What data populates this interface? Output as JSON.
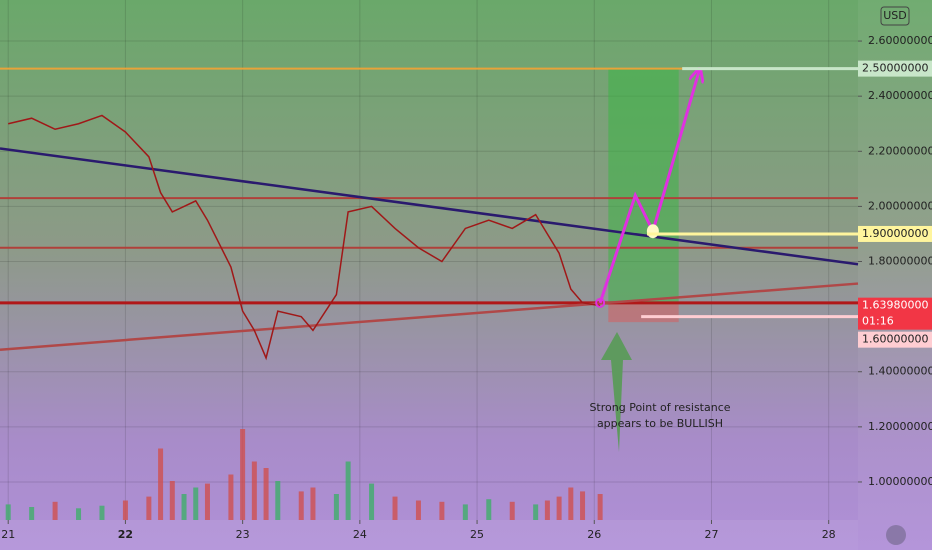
{
  "chart_data": {
    "type": "line",
    "currency": "USD",
    "x": [
      21.0,
      21.2,
      21.4,
      21.6,
      21.8,
      22.0,
      22.2,
      22.3,
      22.4,
      22.5,
      22.6,
      22.7,
      22.9,
      23.0,
      23.1,
      23.2,
      23.3,
      23.5,
      23.6,
      23.8,
      23.9,
      24.1,
      24.3,
      24.5,
      24.7,
      24.9,
      25.1,
      25.3,
      25.5,
      25.6,
      25.7,
      25.8,
      25.9,
      26.05
    ],
    "values": [
      2.3,
      2.32,
      2.28,
      2.3,
      2.33,
      2.27,
      2.18,
      2.05,
      1.98,
      2.0,
      2.02,
      1.95,
      1.78,
      1.62,
      1.55,
      1.45,
      1.62,
      1.6,
      1.55,
      1.68,
      1.98,
      2.0,
      1.92,
      1.85,
      1.8,
      1.92,
      1.95,
      1.92,
      1.97,
      1.9,
      1.83,
      1.7,
      1.65,
      1.64
    ],
    "color": "#a01818",
    "volume": [
      12,
      10,
      14,
      9,
      11,
      15,
      18,
      55,
      30,
      20,
      25,
      28,
      35,
      70,
      45,
      40,
      30,
      22,
      25,
      20,
      45,
      28,
      18,
      15,
      14,
      12,
      16,
      14,
      12,
      15,
      18,
      25,
      22,
      20
    ],
    "y2lim": [
      0,
      100
    ],
    "xlim": [
      20.93,
      28.25
    ],
    "xticks": [
      21,
      22,
      23,
      24,
      25,
      26,
      27,
      28
    ],
    "ylim": [
      0.862,
      2.749
    ],
    "yticks": [
      {
        "value": 1.0,
        "label": "1.00000000"
      },
      {
        "value": 1.2,
        "label": "1.20000000"
      },
      {
        "value": 1.4,
        "label": "1.40000000"
      },
      {
        "value": 1.8,
        "label": "1.80000000"
      },
      {
        "value": 2.0,
        "label": "2.00000000"
      },
      {
        "value": 2.2,
        "label": "2.20000000"
      },
      {
        "value": 2.4,
        "label": "2.40000000"
      },
      {
        "value": 2.6,
        "label": "2.60000000"
      }
    ],
    "grid": true,
    "levels": [
      {
        "value": 2.5,
        "color": "#e8a33a"
      },
      {
        "value": 2.03,
        "color": "#b0403a"
      },
      {
        "value": 1.85,
        "color": "#b0403a"
      },
      {
        "value": 1.65,
        "color": "#b01818"
      }
    ],
    "price_labels": [
      {
        "value": 2.5,
        "label": "2.50000000",
        "color": "#c8e6c9",
        "start": 26.75
      },
      {
        "value": 1.9,
        "label": "1.90000000",
        "color": "#fff59d",
        "start": 26.45
      },
      {
        "value": 1.6398,
        "label": "1.63980000",
        "color": "#f23645",
        "countdown": "01:16"
      },
      {
        "value": 1.6,
        "label": "1.60000000",
        "color": "#ffcdd2",
        "start": 26.4
      }
    ],
    "trendlines": [
      {
        "color": "#2a1a6e",
        "x": [
          20.93,
          28.25
        ],
        "values": [
          2.21,
          1.79
        ]
      },
      {
        "color": "#b04848",
        "x": [
          20.93,
          28.25
        ],
        "values": [
          1.48,
          1.72
        ]
      }
    ],
    "projection": {
      "color": "#e030e0",
      "x": [
        26.05,
        26.35,
        26.5,
        26.9
      ],
      "values": [
        1.65,
        2.04,
        1.91,
        2.5
      ]
    },
    "position": {
      "x": [
        26.12,
        26.72
      ],
      "entry": 1.65,
      "target": 2.5,
      "stop": 1.58
    },
    "annotation": [
      "Strong Point of resistance",
      "appears to be BULLISH"
    ]
  }
}
